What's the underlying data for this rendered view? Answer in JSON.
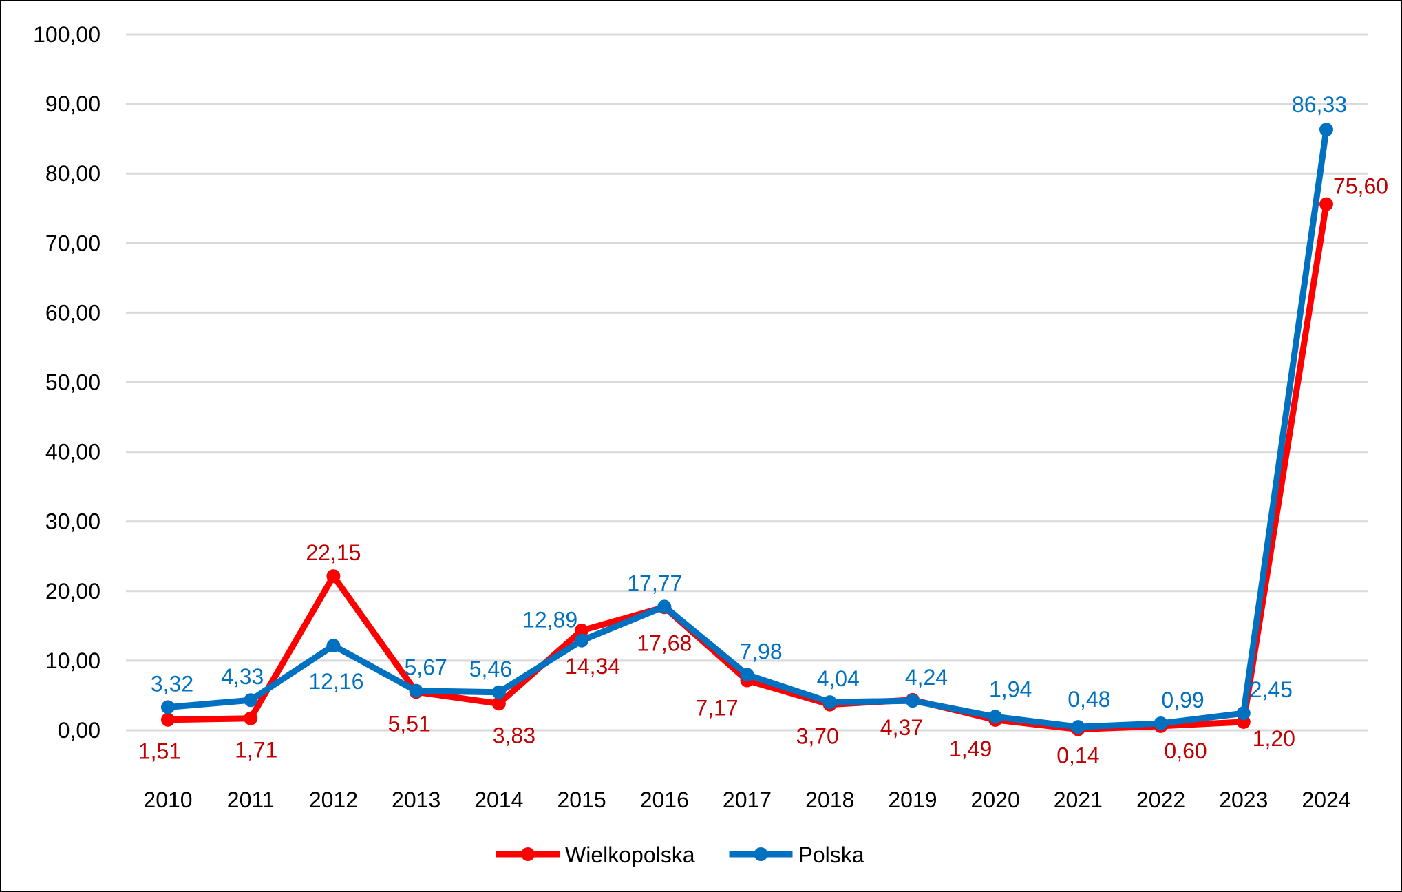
{
  "chart_data": {
    "type": "line",
    "title": "",
    "xlabel": "",
    "ylabel": "",
    "ylim": [
      0,
      100
    ],
    "yticks": [
      "0,00",
      "10,00",
      "20,00",
      "30,00",
      "40,00",
      "50,00",
      "60,00",
      "70,00",
      "80,00",
      "90,00",
      "100,00"
    ],
    "categories": [
      "2010",
      "2011",
      "2012",
      "2013",
      "2014",
      "2015",
      "2016",
      "2017",
      "2018",
      "2019",
      "2020",
      "2021",
      "2022",
      "2023",
      "2024"
    ],
    "grid": true,
    "legend_placement": "bottom",
    "series": [
      {
        "name": "Wielkopolska",
        "color": "#ff0000",
        "label_color": "#c00000",
        "values": [
          1.51,
          1.71,
          22.15,
          5.51,
          3.83,
          14.34,
          17.68,
          7.17,
          3.7,
          4.37,
          1.49,
          0.14,
          0.6,
          1.2,
          75.6
        ],
        "labels": [
          "1,51",
          "1,71",
          "22,15",
          "5,51",
          "3,83",
          "14,34",
          "17,68",
          "7,17",
          "3,70",
          "4,37",
          "1,49",
          "0,14",
          "0,60",
          "1,20",
          "75,60"
        ]
      },
      {
        "name": "Polska",
        "color": "#0070c0",
        "label_color": "#0070c0",
        "values": [
          3.32,
          4.33,
          12.16,
          5.67,
          5.46,
          12.89,
          17.77,
          7.98,
          4.04,
          4.24,
          1.94,
          0.48,
          0.99,
          2.45,
          86.33
        ],
        "labels": [
          "3,32",
          "4,33",
          "12,16",
          "5,67",
          "5,46",
          "12,89",
          "17,77",
          "7,98",
          "4,04",
          "4,24",
          "1,94",
          "0,48",
          "0,99",
          "2,45",
          "86,33"
        ]
      }
    ]
  }
}
